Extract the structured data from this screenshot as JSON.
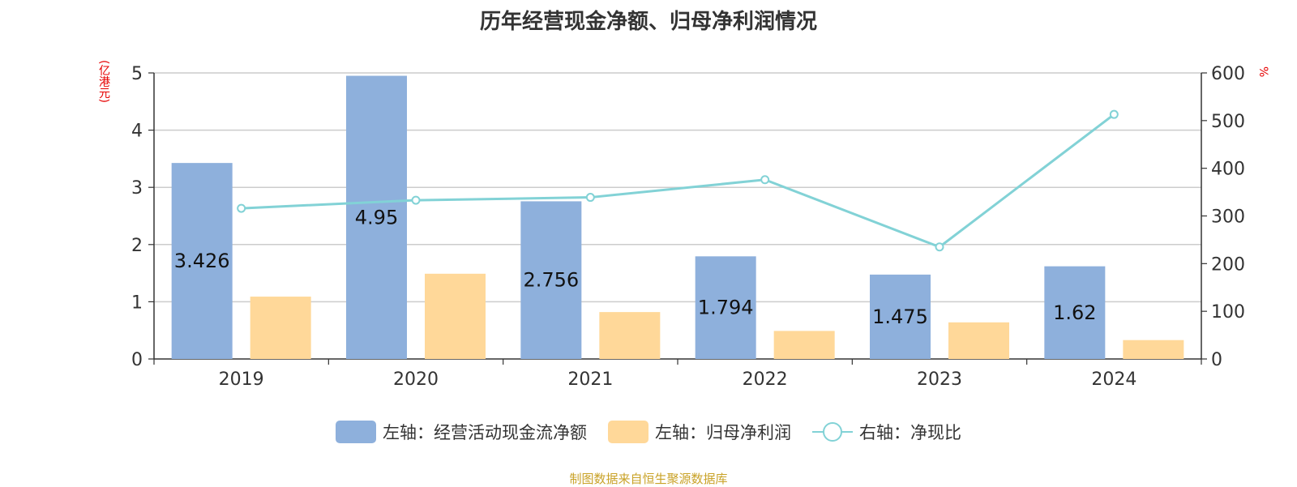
{
  "title": "历年经营现金净额、归母净利润情况",
  "source": "制图数据来自恒生聚源数据库",
  "legend": {
    "item1": "左轴：经营活动现金流净额",
    "item2": "左轴：归母净利润",
    "item3": "右轴：净现比"
  },
  "colors": {
    "bar1": "#8eb0dc",
    "bar2": "#ffd899",
    "line": "#82d2d6",
    "unit": "#e60000",
    "source": "#c9a227"
  },
  "chart_data": {
    "type": "bar",
    "title": "历年经营现金净额、归母净利润情况",
    "categories": [
      "2019",
      "2020",
      "2021",
      "2022",
      "2023",
      "2024"
    ],
    "left_axis": {
      "unit": "(亿港元)",
      "ylim": [
        0,
        5
      ],
      "ticks": [
        "0",
        "1",
        "2",
        "3",
        "4",
        "5"
      ]
    },
    "right_axis": {
      "unit": "%",
      "ylim": [
        0,
        600
      ],
      "ticks": [
        "0",
        "100",
        "200",
        "300",
        "400",
        "500",
        "600"
      ]
    },
    "series": [
      {
        "name": "左轴：经营活动现金流净额",
        "type": "bar",
        "axis": "left",
        "values": [
          3.426,
          4.95,
          2.756,
          1.794,
          1.475,
          1.62
        ],
        "labels": [
          "3.426",
          "4.95",
          "2.756",
          "1.794",
          "1.475",
          "1.62"
        ]
      },
      {
        "name": "左轴：归母净利润",
        "type": "bar",
        "axis": "left",
        "values": [
          1.09,
          1.49,
          0.82,
          0.49,
          0.64,
          0.33
        ]
      },
      {
        "name": "右轴：净现比",
        "type": "line",
        "axis": "right",
        "values": [
          316,
          333,
          339,
          376,
          235,
          513
        ]
      }
    ],
    "grid": true,
    "legend_position": "bottom"
  }
}
